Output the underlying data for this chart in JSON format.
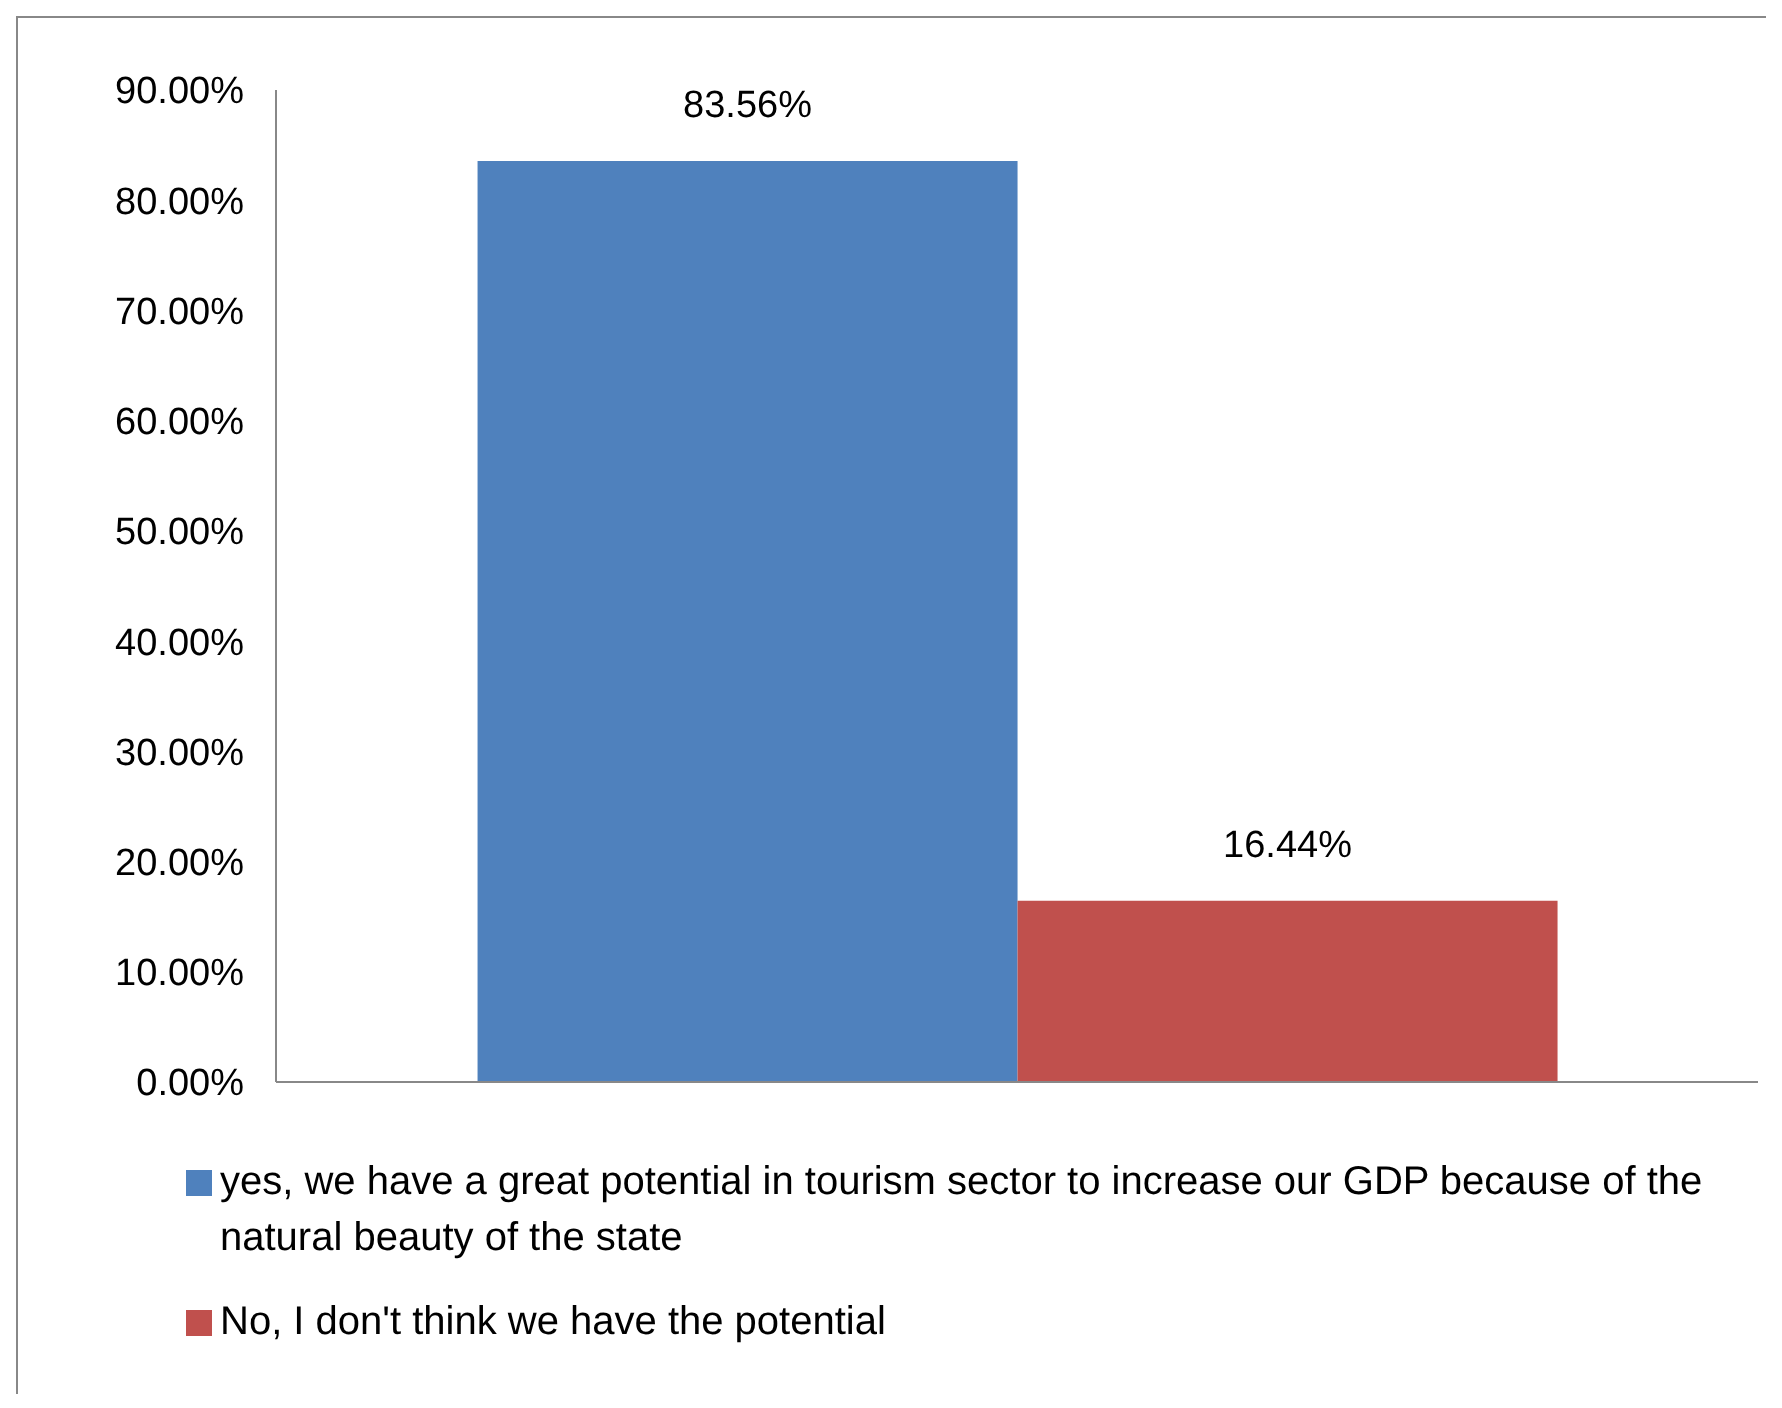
{
  "chart_data": {
    "type": "bar",
    "categories": [
      null
    ],
    "series": [
      {
        "name": "yes, we have a great potential in tourism sector to increase our GDP because of the natural beauty of the state",
        "color": "#4f81bd",
        "values": [
          83.56
        ],
        "value_labels": [
          "83.56%"
        ]
      },
      {
        "name": "No, I don't think we have the potential",
        "color": "#c0504d",
        "values": [
          16.44
        ],
        "value_labels": [
          "16.44%"
        ]
      }
    ],
    "ylim": [
      0,
      90
    ],
    "yticks": [
      {
        "value": 0,
        "label": "0.00%"
      },
      {
        "value": 10,
        "label": "10.00%"
      },
      {
        "value": 20,
        "label": "20.00%"
      },
      {
        "value": 30,
        "label": "30.00%"
      },
      {
        "value": 40,
        "label": "40.00%"
      },
      {
        "value": 50,
        "label": "50.00%"
      },
      {
        "value": 60,
        "label": "60.00%"
      },
      {
        "value": 70,
        "label": "70.00%"
      },
      {
        "value": 80,
        "label": "80.00%"
      },
      {
        "value": 90,
        "label": "90.00%"
      }
    ],
    "grid": false,
    "legend": "bottom"
  }
}
